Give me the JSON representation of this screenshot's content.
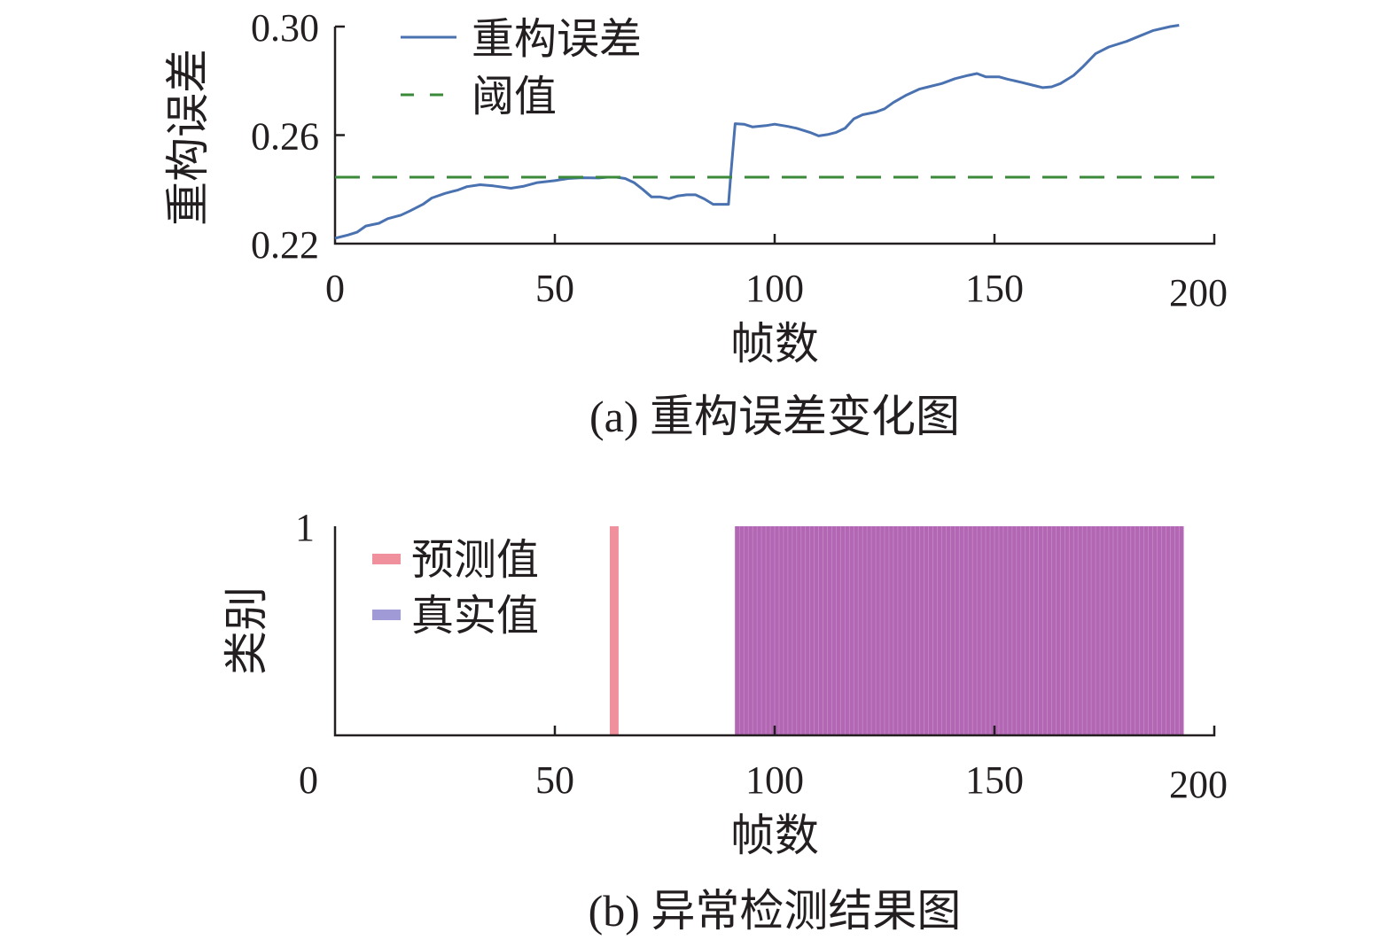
{
  "chart_data": [
    {
      "type": "line",
      "caption": "(a) 重构误差变化图",
      "xlabel": "帧数",
      "ylabel": "重构误差",
      "xlim": [
        0,
        200
      ],
      "ylim": [
        0.22,
        0.3
      ],
      "xticks": [
        0,
        50,
        100,
        150,
        200
      ],
      "xtick_labels": [
        "0",
        "50",
        "100",
        "150",
        "200"
      ],
      "yticks": [
        0.22,
        0.26,
        0.3
      ],
      "ytick_labels": [
        "0.22",
        "0.26",
        "0.30"
      ],
      "grid": false,
      "legend_position": "top-left",
      "series": [
        {
          "name": "重构误差",
          "color": "#4a72b0",
          "style": "solid",
          "x": [
            0,
            3,
            5,
            7,
            10,
            12,
            15,
            17,
            20,
            22,
            25,
            28,
            30,
            33,
            36,
            40,
            43,
            46,
            50,
            53,
            56,
            60,
            62,
            64,
            66,
            68,
            70,
            72,
            74,
            76,
            78,
            80,
            82,
            84,
            86,
            88,
            89.5,
            90,
            91,
            93,
            95,
            98,
            100,
            103,
            105,
            108,
            110,
            112,
            114,
            116,
            118,
            120,
            123,
            125,
            127,
            130,
            133,
            135,
            138,
            141,
            144,
            146,
            148,
            151,
            153,
            156,
            159,
            161,
            163,
            165,
            168,
            170,
            173,
            176,
            180,
            183,
            186,
            190,
            192
          ],
          "values": [
            0.222,
            0.2232,
            0.2242,
            0.2265,
            0.2275,
            0.2292,
            0.2305,
            0.232,
            0.2345,
            0.2368,
            0.2385,
            0.2398,
            0.241,
            0.2417,
            0.2413,
            0.2404,
            0.2412,
            0.2425,
            0.2432,
            0.244,
            0.2443,
            0.2442,
            0.2445,
            0.2445,
            0.244,
            0.2425,
            0.24,
            0.2372,
            0.2372,
            0.2366,
            0.2376,
            0.238,
            0.238,
            0.2365,
            0.2345,
            0.2345,
            0.2345,
            0.245,
            0.2642,
            0.264,
            0.263,
            0.2635,
            0.264,
            0.2632,
            0.2625,
            0.261,
            0.2597,
            0.2602,
            0.261,
            0.2625,
            0.266,
            0.2675,
            0.2685,
            0.2697,
            0.272,
            0.2748,
            0.277,
            0.2778,
            0.279,
            0.2808,
            0.282,
            0.2827,
            0.2815,
            0.2815,
            0.2806,
            0.2795,
            0.2783,
            0.2775,
            0.2778,
            0.279,
            0.282,
            0.285,
            0.29,
            0.2925,
            0.2945,
            0.2965,
            0.2985,
            0.3,
            0.3005
          ]
        },
        {
          "name": "阈值",
          "color": "#3a8a3a",
          "style": "dashed",
          "x": [
            0,
            200
          ],
          "values": [
            0.2445,
            0.2445
          ]
        }
      ]
    },
    {
      "type": "bar",
      "caption": "(b) 异常检测结果图",
      "xlabel": "帧数",
      "ylabel": "类别",
      "xlim": [
        0,
        200
      ],
      "ylim": [
        0,
        1
      ],
      "xticks": [
        0,
        50,
        100,
        150,
        200
      ],
      "xtick_labels": [
        "0",
        "50",
        "100",
        "150",
        "200"
      ],
      "yticks": [
        1
      ],
      "ytick_labels": [
        "1"
      ],
      "grid": false,
      "legend_position": "top-left",
      "series": [
        {
          "name": "预测值",
          "color": "#f0909c",
          "ranges": [
            [
              62.5,
              64.5
            ],
            [
              91,
              193
            ]
          ],
          "value": 1
        },
        {
          "name": "真实值",
          "color": "#a09ad6",
          "ranges": [
            [
              91,
              193
            ]
          ],
          "value": 1
        }
      ],
      "overlap_color": "#b266b4"
    }
  ]
}
